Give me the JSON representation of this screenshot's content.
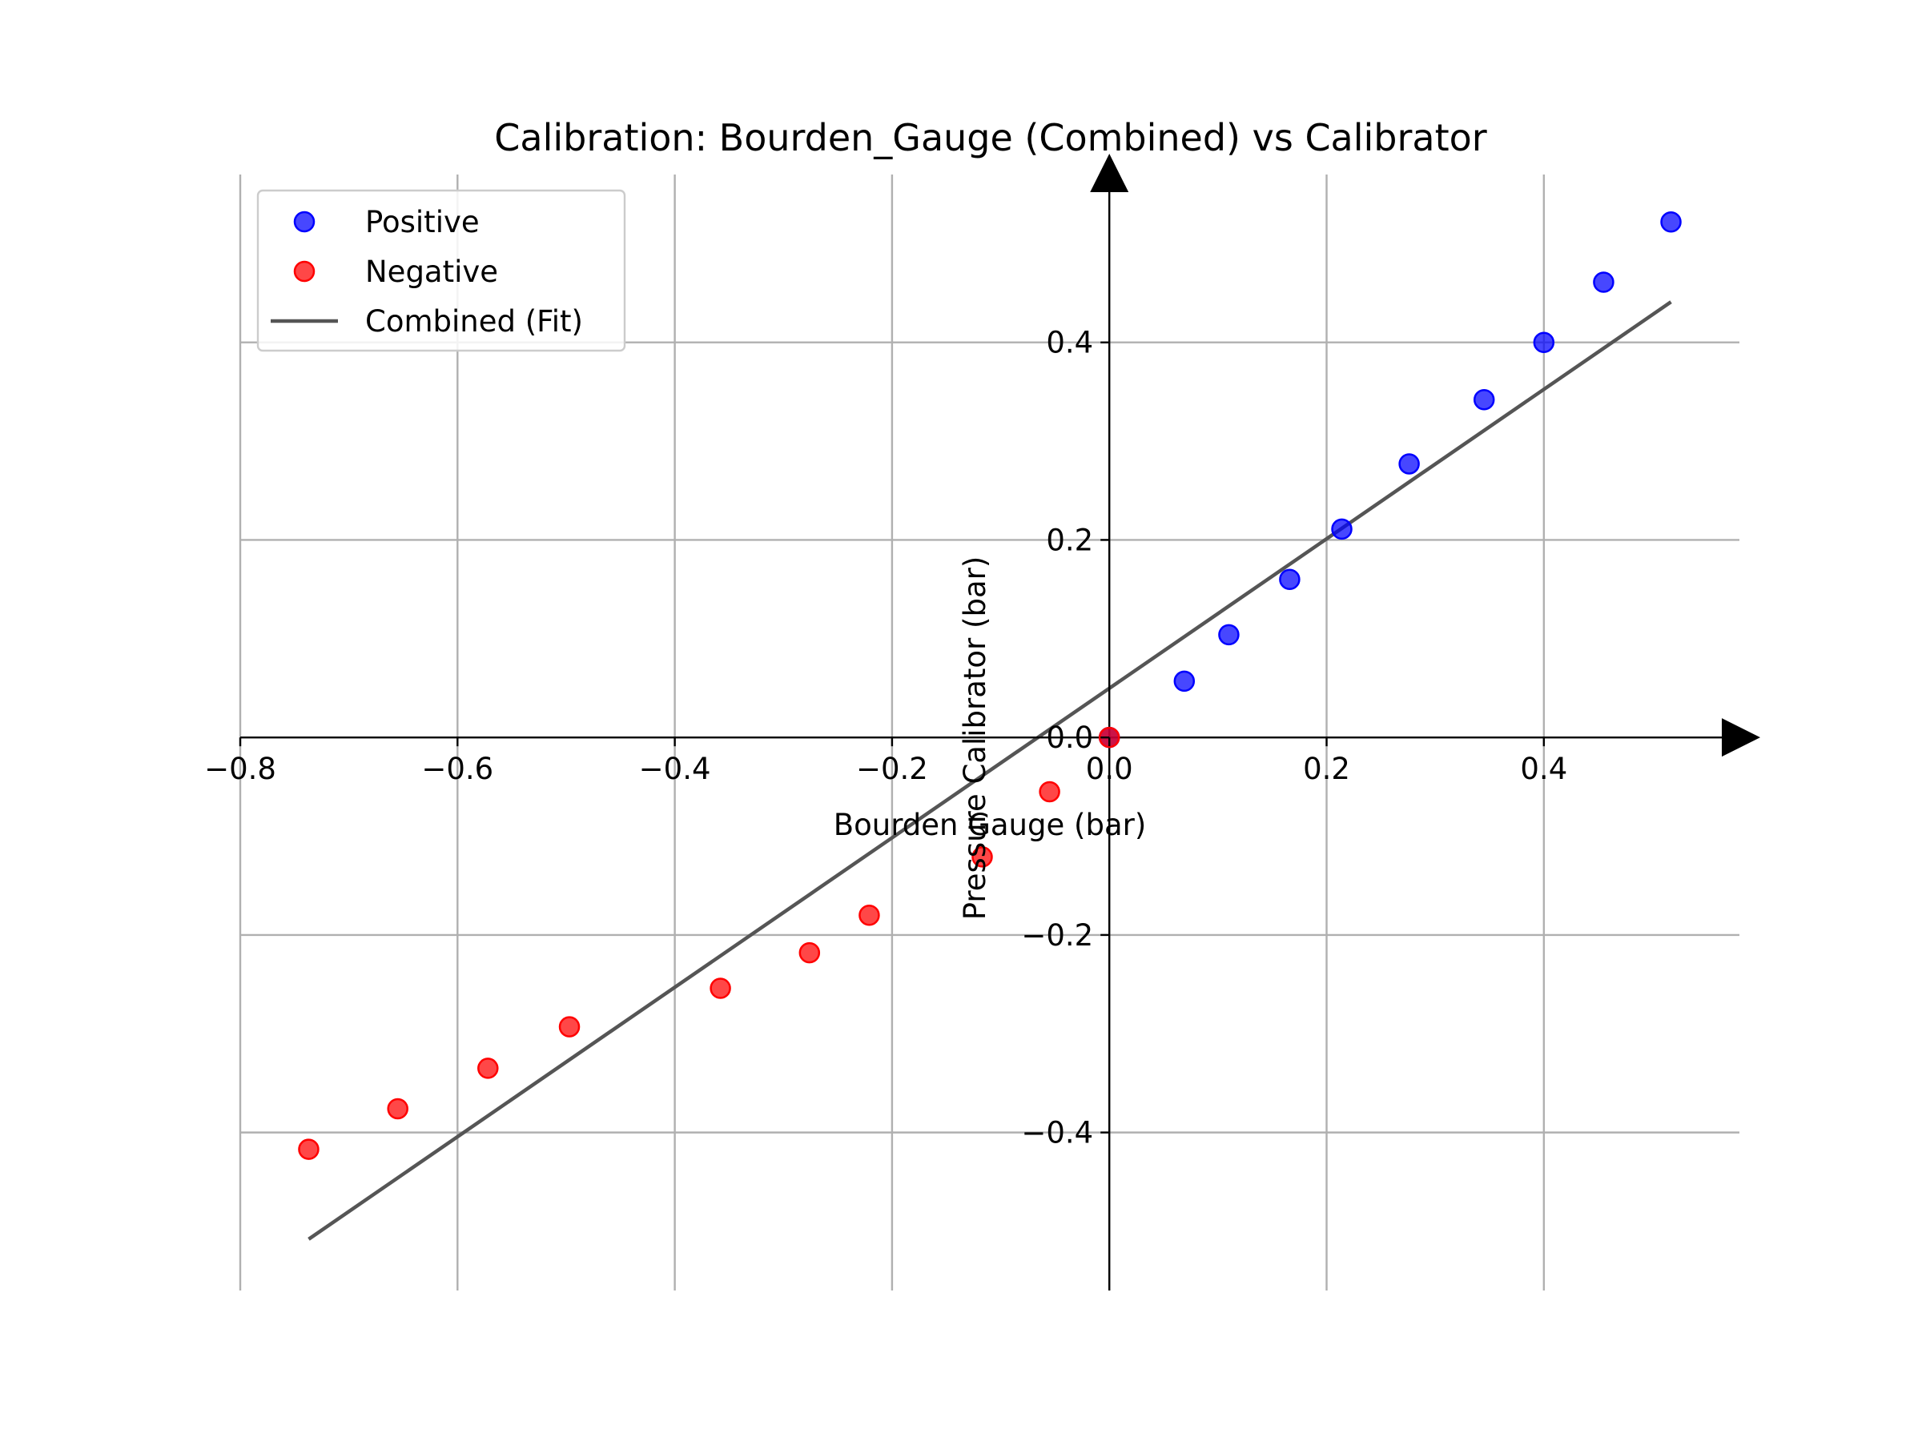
{
  "chart_data": {
    "type": "scatter",
    "title": "Calibration: Bourden_Gauge (Combined) vs Calibrator",
    "xlabel": "Bourden Gauge (bar)",
    "ylabel": "Pressure Calibrator (bar)",
    "xlim": [
      -0.8,
      0.58
    ],
    "ylim": [
      -0.56,
      0.57
    ],
    "x_ticks": [
      -0.8,
      -0.6,
      -0.4,
      -0.2,
      0.0,
      0.2,
      0.4
    ],
    "x_tick_labels": [
      "−0.8",
      "−0.6",
      "−0.4",
      "−0.2",
      "0.0",
      "0.2",
      "0.4"
    ],
    "y_ticks": [
      -0.4,
      -0.2,
      0.0,
      0.2,
      0.4
    ],
    "y_tick_labels": [
      "−0.4",
      "−0.2",
      "0.0",
      "0.2",
      "0.4"
    ],
    "grid": true,
    "legend_position": "top-left",
    "series": [
      {
        "name": "Positive",
        "kind": "scatter",
        "color": "#0000ff",
        "x": [
          0.0,
          0.069,
          0.11,
          0.166,
          0.214,
          0.276,
          0.345,
          0.4,
          0.455,
          0.517
        ],
        "y": [
          0.0,
          0.057,
          0.104,
          0.16,
          0.211,
          0.277,
          0.342,
          0.4,
          0.461,
          0.522
        ]
      },
      {
        "name": "Negative",
        "kind": "scatter",
        "color": "#ff0000",
        "x": [
          0.0,
          -0.055,
          -0.117,
          -0.221,
          -0.276,
          -0.358,
          -0.497,
          -0.572,
          -0.655,
          -0.737
        ],
        "y": [
          0.0,
          -0.055,
          -0.121,
          -0.18,
          -0.218,
          -0.254,
          -0.293,
          -0.335,
          -0.376,
          -0.417
        ]
      },
      {
        "name": "Combined (Fit)",
        "kind": "line",
        "color": "#555555",
        "x": [
          -0.737,
          0.517
        ],
        "y": [
          -0.508,
          0.441
        ]
      }
    ]
  }
}
